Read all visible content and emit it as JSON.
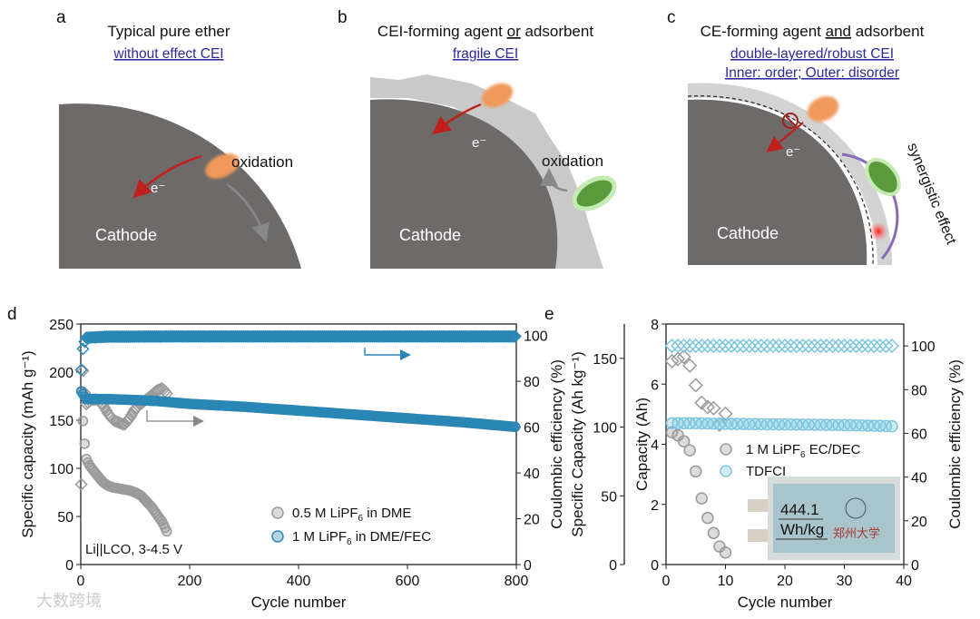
{
  "panels": {
    "a": {
      "label": "a",
      "title": "Typical pure ether",
      "subtitle": "without effect CEI",
      "cathode": "Cathode",
      "electron": "e⁻",
      "oxidation": "oxidation"
    },
    "b": {
      "label": "b",
      "title_pre": "CEI-forming agent ",
      "title_em": "or",
      "title_post": " adsorbent",
      "subtitle": "fragile CEI",
      "cathode": "Cathode",
      "electron": "e⁻",
      "oxidation": "oxidation"
    },
    "c": {
      "label": "c",
      "title_pre": "CE-forming agent ",
      "title_em": "and",
      "title_post": " adsorbent",
      "subtitle1": "double-layered/robust CEI",
      "subtitle2": "Inner: order; Outer: disorder",
      "cathode": "Cathode",
      "electron": "e⁻",
      "synergy": "synergistic effect"
    }
  },
  "colors": {
    "cathode": "#6e6a69",
    "orange": "#f0995a",
    "green": "#5a9a3c",
    "red": "#c0201c",
    "blue": "#2a86b4",
    "lightblue": "#7cc6df",
    "gray": "#9a9a9a",
    "purple": "#8a6ab8",
    "link": "#2a2a9a"
  },
  "watermark": "大数跨境",
  "chart_data": [
    {
      "panel": "d",
      "type": "scatter",
      "xlabel": "Cycle number",
      "ylabel": "Specific capacity (mAh g⁻¹)",
      "y2label": "Coulombic efficiency (%)",
      "xlim": [
        0,
        800
      ],
      "ylim": [
        0,
        250
      ],
      "y2lim": [
        0,
        105
      ],
      "xticks": [
        0,
        200,
        400,
        600,
        800
      ],
      "yticks": [
        0,
        50,
        100,
        150,
        200,
        250
      ],
      "y2ticks": [
        0,
        20,
        40,
        60,
        80,
        100
      ],
      "annotation": "Li||LCO, 3-4.5 V",
      "series": [
        {
          "name": "0.5 M LiPF6 in DME",
          "legend_main": "0.5 M LiPF",
          "legend_sub": "6",
          "legend_post": " in DME",
          "axis": "left",
          "marker": "circle",
          "color": "#9a9a9a",
          "x": [
            1,
            3,
            5,
            8,
            10,
            15,
            20,
            30,
            40,
            50,
            60,
            70,
            80,
            90,
            100,
            110,
            120,
            130,
            140,
            150,
            155,
            160
          ],
          "y": [
            180,
            160,
            140,
            120,
            110,
            104,
            100,
            93,
            86,
            82,
            80,
            79,
            78,
            77,
            75,
            72,
            66,
            60,
            52,
            44,
            38,
            32
          ]
        },
        {
          "name": "0.5 M LiPF6 in DME (CE)",
          "axis": "right",
          "marker": "diamond",
          "color": "#9a9a9a",
          "x": [
            1,
            3,
            5,
            8,
            10,
            15,
            20,
            30,
            40,
            50,
            60,
            70,
            80,
            90,
            100,
            110,
            120,
            130,
            140,
            150,
            160
          ],
          "y": [
            35,
            90,
            80,
            73,
            70,
            71,
            72,
            72,
            70,
            66,
            63,
            62,
            61,
            64,
            68,
            70,
            72,
            74,
            76,
            77,
            74
          ]
        },
        {
          "name": "1 M LiPF6 in DME/FEC",
          "legend_main": "1 M LiPF",
          "legend_sub": "6",
          "legend_post": " in DME/FEC",
          "axis": "left",
          "marker": "circle",
          "color": "#2a86b4",
          "x": [
            1,
            10,
            50,
            100,
            140,
            200,
            300,
            400,
            500,
            600,
            700,
            800
          ],
          "y": [
            180,
            172,
            172,
            171,
            170,
            167,
            164,
            160,
            156,
            152,
            148,
            143
          ]
        },
        {
          "name": "1 M LiPF6 in DME/FEC (CE)",
          "axis": "right",
          "marker": "diamond",
          "color": "#2a86b4",
          "x": [
            1,
            3,
            5,
            10,
            50,
            100,
            200,
            300,
            400,
            500,
            600,
            700,
            800
          ],
          "y": [
            85,
            92,
            96,
            99,
            99.5,
            99.5,
            99.6,
            99.6,
            99.6,
            99.6,
            99.6,
            99.6,
            99.6
          ]
        }
      ]
    },
    {
      "panel": "e",
      "type": "scatter",
      "xlabel": "Cycle number",
      "ylabel": "Capacity (Ah)",
      "ylabel_outer": "Specific Capacity (Ah kg⁻¹)",
      "y2label": "Coulombic efficiency (%)",
      "xlim": [
        0,
        40
      ],
      "ylim": [
        0,
        8
      ],
      "yolim": [
        0,
        175
      ],
      "y2lim": [
        0,
        110
      ],
      "xticks": [
        0,
        10,
        20,
        30,
        40
      ],
      "yticks": [
        0,
        2,
        4,
        6,
        8
      ],
      "yoticks": [
        0,
        50,
        100,
        150
      ],
      "y2ticks": [
        0,
        20,
        40,
        60,
        80,
        100
      ],
      "inset": {
        "line1": "444.1",
        "line2": "Wh/kg",
        "seal_text": "郑州大学"
      },
      "series": [
        {
          "name": "1 M LiPF6 EC/DEC",
          "legend_main": "1 M LiPF",
          "legend_sub": "6",
          "legend_post": " EC/DEC",
          "axis": "left",
          "marker": "circle",
          "color": "#9a9a9a",
          "x": [
            1,
            2,
            3,
            4,
            5,
            6,
            7,
            8,
            9,
            10
          ],
          "y": [
            4.4,
            4.3,
            4.1,
            3.8,
            3.1,
            2.2,
            1.55,
            1.05,
            0.6,
            0.4
          ]
        },
        {
          "name": "1 M LiPF6 EC/DEC (CE)",
          "axis": "right",
          "marker": "diamond",
          "color": "#9a9a9a",
          "x": [
            1,
            3,
            4,
            5,
            6,
            7,
            8,
            9,
            10
          ],
          "y": [
            93,
            95,
            91,
            82,
            74,
            72,
            71.5,
            64,
            69
          ]
        },
        {
          "name": "TDFCI",
          "legend_main": "TDFCI",
          "legend_sub": "",
          "legend_post": "",
          "axis": "left",
          "marker": "circle",
          "color": "#7cc6df",
          "x": [
            1,
            5,
            10,
            15,
            20,
            25,
            30,
            35,
            38
          ],
          "y": [
            4.7,
            4.7,
            4.68,
            4.67,
            4.66,
            4.65,
            4.64,
            4.62,
            4.6
          ]
        },
        {
          "name": "TDFCI (CE)",
          "axis": "right",
          "marker": "diamond",
          "color": "#7cc6df",
          "x": [
            1,
            10,
            20,
            30,
            38
          ],
          "y": [
            100,
            100,
            100,
            100,
            100
          ]
        }
      ]
    }
  ]
}
